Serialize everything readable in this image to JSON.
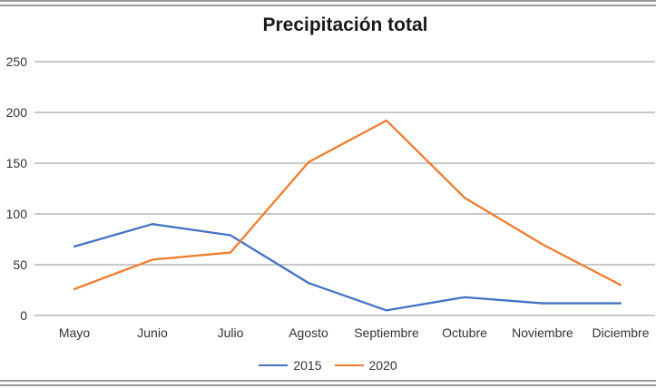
{
  "chart_data": {
    "type": "line",
    "title": "Precipitación total",
    "categories": [
      "Mayo",
      "Junio",
      "Julio",
      "Agosto",
      "Septiembre",
      "Octubre",
      "Noviembre",
      "Diciembre"
    ],
    "series": [
      {
        "name": "2015",
        "color": "#4472C4",
        "values": [
          68,
          90,
          79,
          32,
          5,
          18,
          12,
          12
        ]
      },
      {
        "name": "2020",
        "color": "#ED7D31",
        "values": [
          26,
          55,
          62,
          151,
          192,
          116,
          70,
          30
        ]
      }
    ],
    "xlabel": "",
    "ylabel": "",
    "ylim": [
      0,
      250
    ],
    "yticks": [
      0,
      50,
      100,
      150,
      200,
      250
    ],
    "grid": true,
    "gridline_color": "#a6a6a6",
    "label_color": "#333333",
    "legend_position": "bottom"
  }
}
